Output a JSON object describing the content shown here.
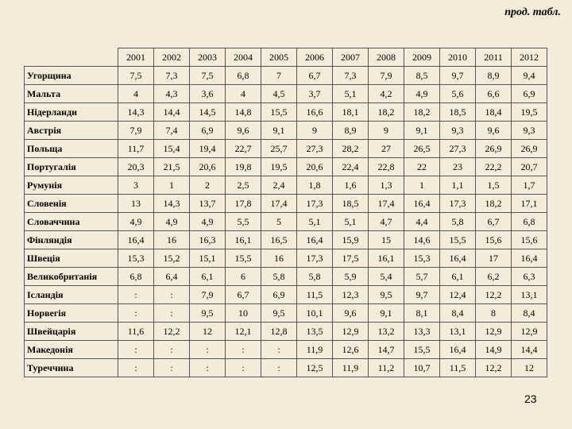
{
  "header": {
    "note": "прод. табл."
  },
  "table": {
    "columns": [
      "2001",
      "2002",
      "2003",
      "2004",
      "2005",
      "2006",
      "2007",
      "2008",
      "2009",
      "2010",
      "2011",
      "2012"
    ],
    "rows": [
      [
        "Угорщина",
        "7,5",
        "7,3",
        "7,5",
        "6,8",
        "7",
        "6,7",
        "7,3",
        "7,9",
        "8,5",
        "9,7",
        "8,9",
        "9,4"
      ],
      [
        "Мальта",
        "4",
        "4,3",
        "3,6",
        "4",
        "4,5",
        "3,7",
        "5,1",
        "4,2",
        "4,9",
        "5,6",
        "6,6",
        "6,9"
      ],
      [
        "Нідерланди",
        "14,3",
        "14,4",
        "14,5",
        "14,8",
        "15,5",
        "16,6",
        "18,1",
        "18,2",
        "18,2",
        "18,5",
        "18,4",
        "19,5"
      ],
      [
        "Австрія",
        "7,9",
        "7,4",
        "6,9",
        "9,6",
        "9,1",
        "9",
        "8,9",
        "9",
        "9,1",
        "9,3",
        "9,6",
        "9,3"
      ],
      [
        "Польща",
        "11,7",
        "15,4",
        "19,4",
        "22,7",
        "25,7",
        "27,3",
        "28,2",
        "27",
        "26,5",
        "27,3",
        "26,9",
        "26,9"
      ],
      [
        "Португалія",
        "20,3",
        "21,5",
        "20,6",
        "19,8",
        "19,5",
        "20,6",
        "22,4",
        "22,8",
        "22",
        "23",
        "22,2",
        "20,7"
      ],
      [
        "Румунія",
        "3",
        "1",
        "2",
        "2,5",
        "2,4",
        "1,8",
        "1,6",
        "1,3",
        "1",
        "1,1",
        "1,5",
        "1,7"
      ],
      [
        "Словенія",
        "13",
        "14,3",
        "13,7",
        "17,8",
        "17,4",
        "17,3",
        "18,5",
        "17,4",
        "16,4",
        "17,3",
        "18,2",
        "17,1"
      ],
      [
        "Словаччина",
        "4,9",
        "4,9",
        "4,9",
        "5,5",
        "5",
        "5,1",
        "5,1",
        "4,7",
        "4,4",
        "5,8",
        "6,7",
        "6,8"
      ],
      [
        "Фінляндія",
        "16,4",
        "16",
        "16,3",
        "16,1",
        "16,5",
        "16,4",
        "15,9",
        "15",
        "14,6",
        "15,5",
        "15,6",
        "15,6"
      ],
      [
        "Швеція",
        "15,3",
        "15,2",
        "15,1",
        "15,5",
        "16",
        "17,3",
        "17,5",
        "16,1",
        "15,3",
        "16,4",
        "17",
        "16,4"
      ],
      [
        "Великобританія",
        "6,8",
        "6,4",
        "6,1",
        "6",
        "5,8",
        "5,8",
        "5,9",
        "5,4",
        "5,7",
        "6,1",
        "6,2",
        "6,3"
      ],
      [
        "Ісландія",
        ":",
        ":",
        "7,9",
        "6,7",
        "6,9",
        "11,5",
        "12,3",
        "9,5",
        "9,7",
        "12,4",
        "12,2",
        "13,1"
      ],
      [
        "Норвегія",
        ":",
        ":",
        "9,5",
        "10",
        "9,5",
        "10,1",
        "9,6",
        "9,1",
        "8,1",
        "8,4",
        "8",
        "8,4"
      ],
      [
        "Швейцарія",
        "11,6",
        "12,2",
        "12",
        "12,1",
        "12,8",
        "13,5",
        "12,9",
        "13,2",
        "13,3",
        "13,1",
        "12,9",
        "12,9"
      ],
      [
        "Македонія",
        ":",
        ":",
        ":",
        ":",
        ":",
        "11,9",
        "12,6",
        "14,7",
        "15,5",
        "16,4",
        "14,9",
        "14,4"
      ],
      [
        "Туреччина",
        ":",
        ":",
        ":",
        ":",
        ":",
        "12,5",
        "11,9",
        "11,2",
        "10,7",
        "11,5",
        "12,2",
        "12"
      ]
    ]
  },
  "footer": {
    "page_number": "23"
  }
}
